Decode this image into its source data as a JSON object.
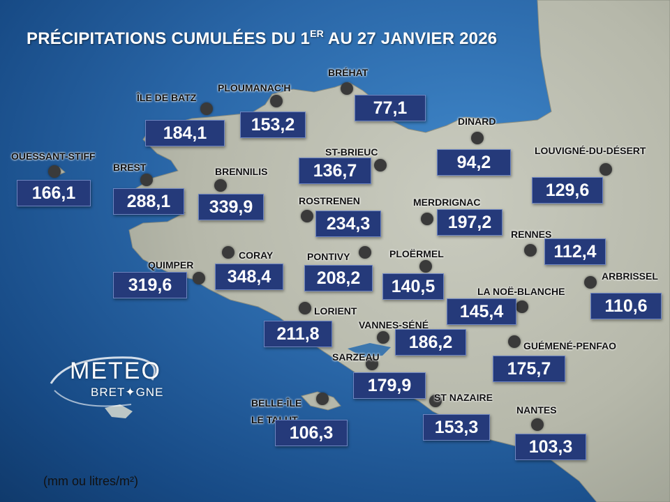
{
  "title": {
    "part1": "PRÉCIPITATIONS CUMULÉES DU 1",
    "sup": "ER",
    "part2": " AU 27 JANVIER 2026"
  },
  "unit": "(mm ou litres/m²)",
  "logo": {
    "main": "METEO",
    "sub": "BRET✦GNE"
  },
  "colors": {
    "sea": "#2a67a8",
    "land": "#b6b8aa",
    "value_box": "#253a7a",
    "dot": "#3a3a3a"
  },
  "stations": [
    {
      "id": "ouessant-stiff",
      "name": "OUESSANT-STIFF",
      "value": "166,1"
    },
    {
      "id": "brest",
      "name": "BREST",
      "value": "288,1"
    },
    {
      "id": "ile-de-batz",
      "name": "ÎLE DE BATZ",
      "value": "184,1"
    },
    {
      "id": "ploumanach",
      "name": "PLOUMANAC'H",
      "value": "153,2"
    },
    {
      "id": "brehat",
      "name": "BRÉHAT",
      "value": "77,1"
    },
    {
      "id": "dinard",
      "name": "DINARD",
      "value": "94,2"
    },
    {
      "id": "louvigne",
      "name": "LOUVIGNÉ-DU-DÉSERT",
      "value": "129,6"
    },
    {
      "id": "brennilis",
      "name": "BRENNILIS",
      "value": "339,9"
    },
    {
      "id": "st-brieuc",
      "name": "ST-BRIEUC",
      "value": "136,7"
    },
    {
      "id": "rostrenen",
      "name": "ROSTRENEN",
      "value": "234,3"
    },
    {
      "id": "merdrignac",
      "name": "MERDRIGNAC",
      "value": "197,2"
    },
    {
      "id": "rennes",
      "name": "RENNES",
      "value": "112,4"
    },
    {
      "id": "quimper",
      "name": "QUIMPER",
      "value": "319,6"
    },
    {
      "id": "coray",
      "name": "CORAY",
      "value": "348,4"
    },
    {
      "id": "pontivy",
      "name": "PONTIVY",
      "value": "208,2"
    },
    {
      "id": "ploermel",
      "name": "PLOËRMEL",
      "value": "140,5"
    },
    {
      "id": "arbrissel",
      "name": "ARBRISSEL",
      "value": "110,6"
    },
    {
      "id": "la-noe-blanche",
      "name": "LA NOË-BLANCHE",
      "value": "145,4"
    },
    {
      "id": "lorient",
      "name": "LORIENT",
      "value": "211,8"
    },
    {
      "id": "vannes-sene",
      "name": "VANNES-SÉNÉ",
      "value": "186,2"
    },
    {
      "id": "guemene-penfao",
      "name": "GUÉMENÉ-PENFAO",
      "value": "175,7"
    },
    {
      "id": "sarzeau",
      "name": "SARZEAU",
      "value": "179,9"
    },
    {
      "id": "belle-ile",
      "name": "BELLE-ÎLE\nLE TALUT",
      "value": "106,3"
    },
    {
      "id": "st-nazaire",
      "name": "ST NAZAIRE",
      "value": "153,3"
    },
    {
      "id": "nantes",
      "name": "NANTES",
      "value": "103,3"
    }
  ]
}
